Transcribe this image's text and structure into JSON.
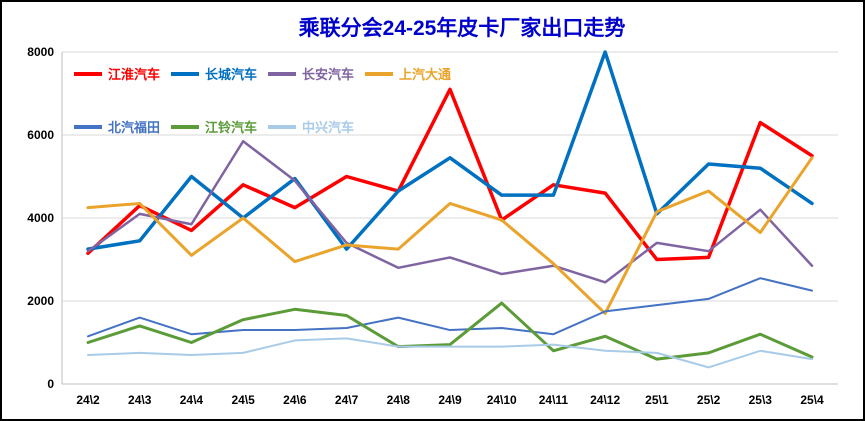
{
  "title": "乘联分会24-25年皮卡厂家出口走势",
  "chart_data": {
    "type": "line",
    "title": "乘联分会24-25年皮卡厂家出口走势",
    "xlabel": "",
    "ylabel": "",
    "categories": [
      "24\\2",
      "24\\3",
      "24\\4",
      "24\\5",
      "24\\6",
      "24\\7",
      "24\\8",
      "24\\9",
      "24\\10",
      "24\\11",
      "24\\12",
      "25\\1",
      "25\\2",
      "25\\3",
      "25\\4"
    ],
    "series": [
      {
        "name": "江淮汽车",
        "color": "#FF0000",
        "values": [
          3150,
          4300,
          3700,
          4800,
          4250,
          5000,
          4650,
          7100,
          3950,
          4800,
          4600,
          3000,
          3050,
          6300,
          5500
        ]
      },
      {
        "name": "长城汽车",
        "color": "#0070C0",
        "values": [
          3250,
          3450,
          5000,
          4000,
          4950,
          3250,
          4650,
          5450,
          4550,
          4550,
          8000,
          4100,
          5300,
          5200,
          4350
        ]
      },
      {
        "name": "长安汽车",
        "color": "#8064A2",
        "values": [
          3200,
          4100,
          3850,
          5850,
          4900,
          3400,
          2800,
          3050,
          2650,
          2850,
          2450,
          3400,
          3200,
          4200,
          2850
        ]
      },
      {
        "name": "上汽大通",
        "color": "#EAA42C",
        "values": [
          4250,
          4350,
          3100,
          4000,
          2950,
          3350,
          3250,
          4350,
          3950,
          2900,
          1700,
          4150,
          4650,
          3650,
          5450
        ]
      },
      {
        "name": "北汽福田",
        "color": "#4472C4",
        "values": [
          1150,
          1600,
          1200,
          1300,
          1300,
          1350,
          1600,
          1300,
          1350,
          1200,
          1750,
          1900,
          2050,
          2550,
          2250
        ]
      },
      {
        "name": "江铃汽车",
        "color": "#5B9B38",
        "values": [
          1000,
          1400,
          1000,
          1550,
          1800,
          1650,
          900,
          950,
          1950,
          800,
          1150,
          600,
          750,
          1200,
          650
        ]
      },
      {
        "name": "中兴汽车",
        "color": "#A8CBE8",
        "values": [
          700,
          750,
          700,
          750,
          1050,
          1100,
          900,
          900,
          900,
          950,
          800,
          750,
          400,
          800,
          600
        ]
      }
    ],
    "ylim": [
      0,
      8000
    ],
    "yticks": [
      0,
      2000,
      4000,
      6000,
      8000
    ],
    "grid": true,
    "legend_position": "top-left",
    "legend_rows": [
      [
        0,
        1,
        2,
        3
      ],
      [
        4,
        5,
        6
      ]
    ],
    "title_color": "#0000CC",
    "axis_color": "#BFBFBF",
    "grid_color": "#D9D9D9",
    "label_color": "#000000"
  }
}
